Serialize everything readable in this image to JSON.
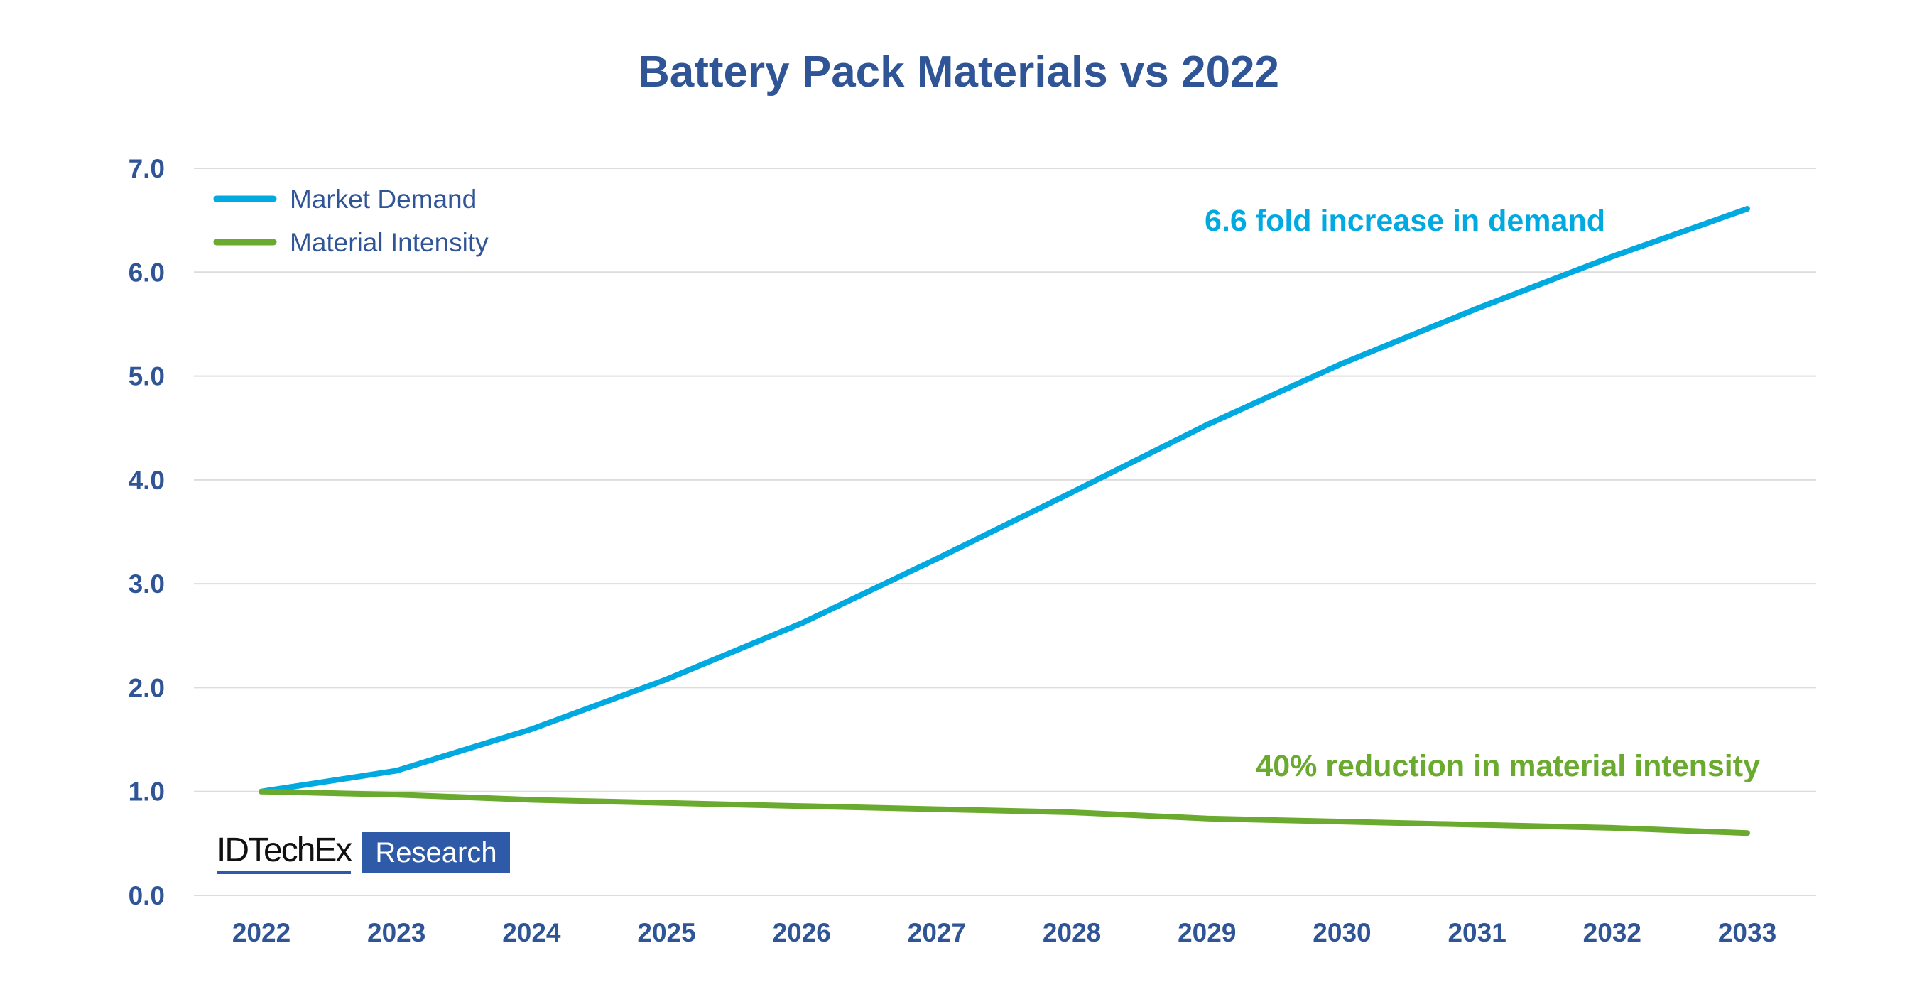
{
  "chart_data": {
    "type": "line",
    "title": "Battery Pack Materials vs 2022",
    "xlabel": "",
    "ylabel": "",
    "x": [
      2022,
      2023,
      2024,
      2025,
      2026,
      2027,
      2028,
      2029,
      2030,
      2031,
      2032,
      2033
    ],
    "ylim": [
      0,
      7
    ],
    "yticks": [
      "0.0",
      "1.0",
      "2.0",
      "3.0",
      "4.0",
      "5.0",
      "6.0",
      "7.0"
    ],
    "grid": true,
    "legend_position": "top-left",
    "series": [
      {
        "name": "Market Demand",
        "color": "#00a9e0",
        "values": [
          1.0,
          1.2,
          1.6,
          2.08,
          2.62,
          3.24,
          3.88,
          4.53,
          5.12,
          5.65,
          6.15,
          6.61
        ]
      },
      {
        "name": "Material Intensity",
        "color": "#6aaa2e",
        "values": [
          1.0,
          0.97,
          0.92,
          0.89,
          0.86,
          0.83,
          0.8,
          0.74,
          0.71,
          0.68,
          0.65,
          0.6
        ]
      }
    ],
    "annotations": [
      {
        "text": "6.6 fold increase in demand",
        "color": "#00a9e0"
      },
      {
        "text": "40% reduction in material intensity",
        "color": "#6aaa2e"
      }
    ]
  },
  "logo": {
    "main": "IDTechEx",
    "badge": "Research"
  }
}
